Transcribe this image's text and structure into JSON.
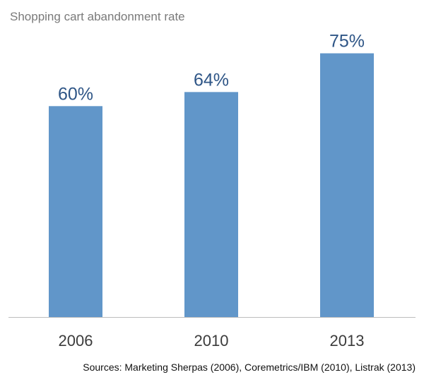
{
  "chart_data": {
    "type": "bar",
    "title": "Shopping cart abandonment rate",
    "categories": [
      "2006",
      "2010",
      "2013"
    ],
    "values": [
      60,
      64,
      75
    ],
    "value_labels": [
      "60%",
      "64%",
      "75%"
    ],
    "ylim": [
      0,
      100
    ],
    "grid": false,
    "legend": "none",
    "bar_color": "#6196c9",
    "label_color": "#2e5586",
    "axis_color": "#bdbdbd",
    "tick_color": "#3b3b3b",
    "source": "Sources: Marketing Sherpas (2006), Coremetrics/IBM (2010), Listrak (2013)"
  }
}
